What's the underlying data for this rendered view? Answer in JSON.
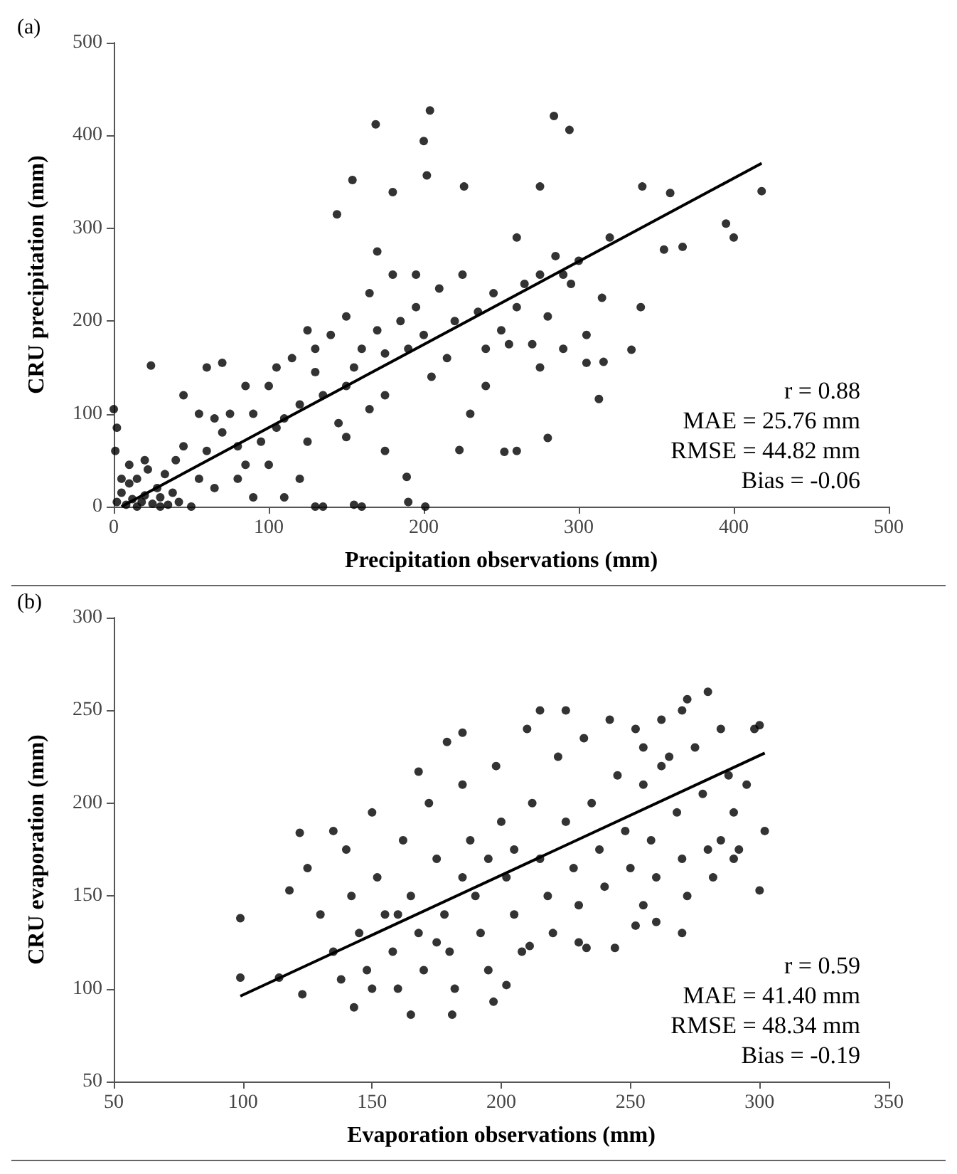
{
  "chart_data": [
    {
      "type": "scatter",
      "xlabel": "Precipitation observations (mm)",
      "ylabel": "CRU precipitation (mm)",
      "xlim": [
        0,
        500
      ],
      "ylim": [
        0,
        500
      ],
      "xticks": [
        0,
        100,
        200,
        300,
        400,
        500
      ],
      "yticks": [
        0,
        100,
        200,
        300,
        400,
        500
      ],
      "grid": false,
      "annotations": [
        "(a)",
        "r = 0.88",
        "MAE = 25.76 mm",
        "RMSE = 44.82 mm",
        "Bias = -0.06"
      ],
      "series": [
        {
          "color": "#000000",
          "marker": "circle",
          "x": [
            2,
            5,
            8,
            10,
            12,
            15,
            18,
            20,
            22,
            25,
            28,
            30,
            33,
            35,
            38,
            0,
            2,
            1,
            24,
            45,
            10,
            40,
            42,
            50,
            55,
            60,
            65,
            70,
            75,
            80,
            85,
            90,
            95,
            100,
            105,
            110,
            115,
            120,
            125,
            130,
            135,
            140,
            145,
            150,
            155,
            160,
            165,
            170,
            175,
            180,
            185,
            190,
            195,
            200,
            205,
            210,
            215,
            220,
            225,
            230,
            235,
            240,
            245,
            250,
            255,
            260,
            265,
            270,
            275,
            280,
            285,
            290,
            295,
            300,
            305,
            313,
            315,
            320,
            334,
            316,
            340,
            341,
            355,
            367,
            359,
            395,
            400,
            418,
            284,
            294,
            204,
            200,
            169,
            154,
            202,
            226,
            180,
            144,
            280,
            252,
            223,
            201,
            155,
            189,
            275,
            290,
            305,
            260,
            160,
            135,
            70,
            80,
            100,
            110,
            120,
            190,
            60,
            55,
            130,
            90,
            170,
            175,
            150,
            125,
            165,
            5,
            15,
            30,
            20,
            45,
            65,
            85,
            105,
            130,
            150,
            175,
            195,
            240,
            260,
            275
          ],
          "values": [
            5,
            15,
            2,
            25,
            8,
            30,
            5,
            12,
            40,
            3,
            20,
            10,
            35,
            2,
            15,
            105,
            85,
            60,
            152,
            120,
            45,
            50,
            5,
            0,
            30,
            60,
            20,
            80,
            100,
            65,
            45,
            100,
            70,
            130,
            85,
            95,
            160,
            110,
            70,
            145,
            120,
            185,
            90,
            205,
            150,
            170,
            230,
            190,
            120,
            250,
            200,
            170,
            215,
            185,
            140,
            235,
            160,
            200,
            250,
            100,
            210,
            170,
            230,
            190,
            175,
            215,
            240,
            175,
            250,
            205,
            270,
            170,
            240,
            265,
            185,
            116,
            225,
            290,
            169,
            156,
            215,
            345,
            277,
            280,
            338,
            305,
            290,
            340,
            421,
            406,
            427,
            394,
            412,
            352,
            357,
            345,
            339,
            315,
            74,
            59,
            61,
            0,
            2,
            32,
            150,
            250,
            155,
            60,
            0,
            0,
            155,
            30,
            45,
            10,
            30,
            5,
            150,
            100,
            0,
            10,
            275,
            60,
            75,
            190,
            105,
            30,
            0,
            0,
            50,
            65,
            95,
            130,
            150,
            170,
            130,
            165,
            250,
            130,
            290,
            345
          ]
        },
        {
          "type": "line",
          "marker": "none",
          "color": "#000000",
          "x": [
            5,
            418
          ],
          "values": [
            0,
            370
          ]
        }
      ]
    },
    {
      "type": "scatter",
      "xlabel": "Evaporation observations (mm)",
      "ylabel": "CRU evaporation (mm)",
      "xlim": [
        50,
        350
      ],
      "ylim": [
        50,
        300
      ],
      "xticks": [
        50,
        100,
        150,
        200,
        250,
        300,
        350
      ],
      "yticks": [
        50,
        100,
        150,
        200,
        250,
        300
      ],
      "grid": false,
      "annotations": [
        "(b)",
        "r = 0.59",
        "MAE = 41.40 mm",
        "RMSE = 48.34 mm",
        "Bias = -0.19"
      ],
      "series": [
        {
          "color": "#000000",
          "marker": "circle",
          "x": [
            99,
            99,
            114,
            122,
            118,
            123,
            197,
            165,
            181,
            143,
            272,
            225,
            215,
            185,
            179,
            168,
            244,
            260,
            252,
            211,
            233,
            202,
            300,
            298,
            290,
            300,
            302,
            285,
            280,
            270,
            262,
            255,
            125,
            130,
            135,
            138,
            140,
            142,
            145,
            148,
            150,
            152,
            155,
            158,
            160,
            162,
            165,
            168,
            170,
            172,
            175,
            178,
            180,
            182,
            185,
            188,
            190,
            192,
            195,
            198,
            200,
            202,
            205,
            208,
            210,
            212,
            215,
            218,
            220,
            222,
            225,
            228,
            230,
            232,
            235,
            238,
            240,
            242,
            245,
            248,
            250,
            252,
            255,
            258,
            260,
            262,
            265,
            268,
            270,
            272,
            275,
            278,
            280,
            282,
            285,
            288,
            290,
            292,
            295,
            270,
            255,
            230,
            195,
            175,
            160,
            185,
            205,
            150,
            135
          ],
          "values": [
            138,
            106,
            106,
            184,
            153,
            97,
            93,
            86,
            86,
            90,
            256,
            250,
            250,
            238,
            233,
            217,
            122,
            136,
            134,
            123,
            122,
            102,
            242,
            240,
            170,
            153,
            185,
            180,
            260,
            250,
            220,
            230,
            165,
            140,
            120,
            105,
            175,
            150,
            130,
            110,
            195,
            160,
            140,
            120,
            100,
            180,
            150,
            130,
            110,
            200,
            170,
            140,
            120,
            100,
            210,
            180,
            150,
            130,
            110,
            220,
            190,
            160,
            140,
            120,
            240,
            200,
            170,
            150,
            130,
            225,
            190,
            165,
            145,
            235,
            200,
            175,
            155,
            245,
            215,
            185,
            165,
            240,
            210,
            180,
            160,
            245,
            225,
            195,
            170,
            150,
            230,
            205,
            175,
            160,
            240,
            215,
            195,
            175,
            210,
            130,
            145,
            125,
            170,
            125,
            140,
            160,
            175,
            100,
            185
          ]
        },
        {
          "type": "line",
          "marker": "none",
          "color": "#000000",
          "x": [
            99,
            302
          ],
          "values": [
            96,
            227
          ]
        }
      ]
    }
  ]
}
